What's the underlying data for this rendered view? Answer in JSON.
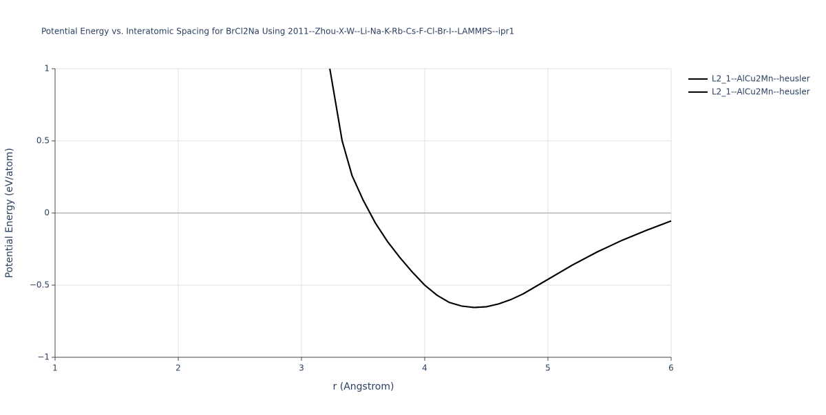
{
  "chart_data": {
    "type": "line",
    "title": "Potential Energy vs. Interatomic Spacing for BrCl2Na Using 2011--Zhou-X-W--Li-Na-K-Rb-Cs-F-Cl-Br-I--LAMMPS--ipr1",
    "x_label": "r (Angstrom)",
    "y_label": "Potential Energy (eV/atom)",
    "x": [
      3.23,
      3.27,
      3.33,
      3.41,
      3.5,
      3.6,
      3.7,
      3.8,
      3.9,
      4.0,
      4.1,
      4.2,
      4.3,
      4.4,
      4.5,
      4.6,
      4.7,
      4.8,
      5.0,
      5.2,
      5.4,
      5.6,
      5.8,
      6.0
    ],
    "series": [
      {
        "name": "L2_1--AlCu2Mn--heusler",
        "color": "#000000",
        "values": [
          1.0,
          0.8,
          0.5,
          0.26,
          0.09,
          -0.07,
          -0.2,
          -0.31,
          -0.41,
          -0.5,
          -0.57,
          -0.62,
          -0.645,
          -0.655,
          -0.65,
          -0.63,
          -0.6,
          -0.56,
          -0.46,
          -0.36,
          -0.27,
          -0.19,
          -0.12,
          -0.055
        ]
      },
      {
        "name": "L2_1--AlCu2Mn--heusler",
        "color": "#000000",
        "values": [
          1.0,
          0.8,
          0.5,
          0.26,
          0.09,
          -0.07,
          -0.2,
          -0.31,
          -0.41,
          -0.5,
          -0.57,
          -0.62,
          -0.645,
          -0.655,
          -0.65,
          -0.63,
          -0.6,
          -0.56,
          -0.46,
          -0.36,
          -0.27,
          -0.19,
          -0.12,
          -0.055
        ]
      }
    ],
    "xlim": [
      1,
      6
    ],
    "xticks": [
      1,
      2,
      3,
      4,
      5,
      6
    ],
    "ylim": [
      -1,
      1
    ],
    "yticks": [
      {
        "value": -1,
        "label": "−1"
      },
      {
        "value": -0.5,
        "label": "−0.5"
      },
      0,
      0.5,
      1
    ],
    "grid": true,
    "legend": "top-right"
  }
}
